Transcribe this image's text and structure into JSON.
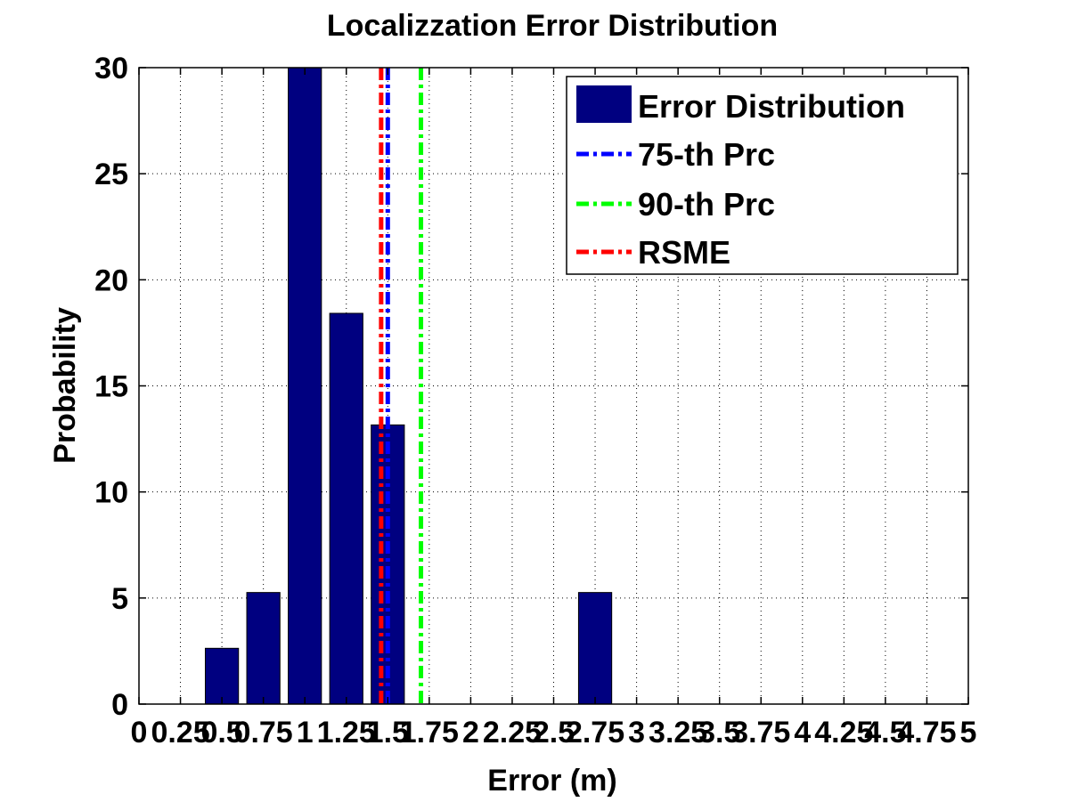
{
  "chart_data": {
    "type": "bar",
    "title": "Localizzation Error Distribution",
    "xlabel": "Error (m)",
    "ylabel": "Probability",
    "xlim": [
      0,
      5
    ],
    "ylim": [
      0,
      30
    ],
    "xticks": [
      0,
      0.25,
      0.5,
      0.75,
      1,
      1.25,
      1.5,
      1.75,
      2,
      2.25,
      2.5,
      2.75,
      3,
      3.25,
      3.5,
      3.75,
      4,
      4.25,
      4.5,
      4.75,
      5
    ],
    "xtick_labels": [
      "0",
      "0.25",
      "0.5",
      "0.75",
      "1",
      "1.25",
      "1.5",
      "1.75",
      "2",
      "2.25",
      "2.5",
      "2.75",
      "3",
      "3.25",
      "3.5",
      "3.75",
      "4",
      "4.25",
      "4.5",
      "4.75",
      "5"
    ],
    "yticks": [
      0,
      5,
      10,
      15,
      20,
      25,
      30
    ],
    "ytick_labels": [
      "0",
      "5",
      "10",
      "15",
      "20",
      "25",
      "30"
    ],
    "grid": true,
    "legend_position": "top-right",
    "bars": {
      "name": "Error Distribution",
      "color": "#000080",
      "x": [
        0.5,
        0.75,
        1.0,
        1.25,
        1.5,
        2.75
      ],
      "values": [
        2.63,
        5.26,
        30.0,
        18.42,
        13.16,
        5.26
      ]
    },
    "vlines": [
      {
        "name": "75-th Prc",
        "x": 1.5,
        "color": "#0000ff"
      },
      {
        "name": "90-th Prc",
        "x": 1.7,
        "color": "#00ff00"
      },
      {
        "name": "RSME",
        "x": 1.46,
        "color": "#ff0000"
      }
    ]
  }
}
